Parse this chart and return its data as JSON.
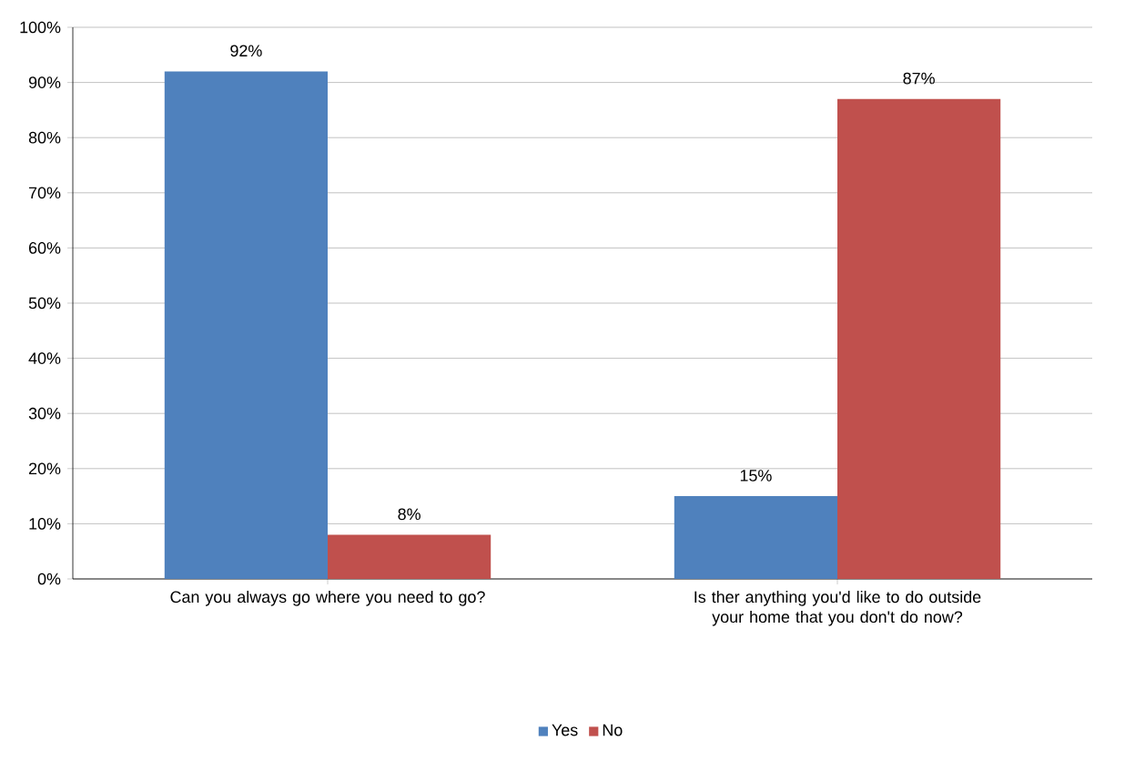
{
  "chart_data": {
    "type": "bar",
    "categories": [
      "Can you always go where you need to go?",
      "Is ther anything you'd like to do outside your home that you don't do now?"
    ],
    "series": [
      {
        "name": "Yes",
        "color": "#4f81bd",
        "values": [
          92,
          15
        ],
        "value_labels": [
          "92%",
          "15%"
        ]
      },
      {
        "name": "No",
        "color": "#c0504d",
        "values": [
          8,
          87
        ],
        "value_labels": [
          "8%",
          "87%"
        ]
      }
    ],
    "ylim": [
      0,
      100
    ],
    "yticks": [
      {
        "value": 0,
        "label": "0%"
      },
      {
        "value": 10,
        "label": "10%"
      },
      {
        "value": 20,
        "label": "20%"
      },
      {
        "value": 30,
        "label": "30%"
      },
      {
        "value": 40,
        "label": "40%"
      },
      {
        "value": 50,
        "label": "50%"
      },
      {
        "value": 60,
        "label": "60%"
      },
      {
        "value": 70,
        "label": "70%"
      },
      {
        "value": 80,
        "label": "80%"
      },
      {
        "value": 90,
        "label": "90%"
      },
      {
        "value": 100,
        "label": "100%"
      }
    ],
    "grid": "y",
    "legend": "bottom"
  }
}
